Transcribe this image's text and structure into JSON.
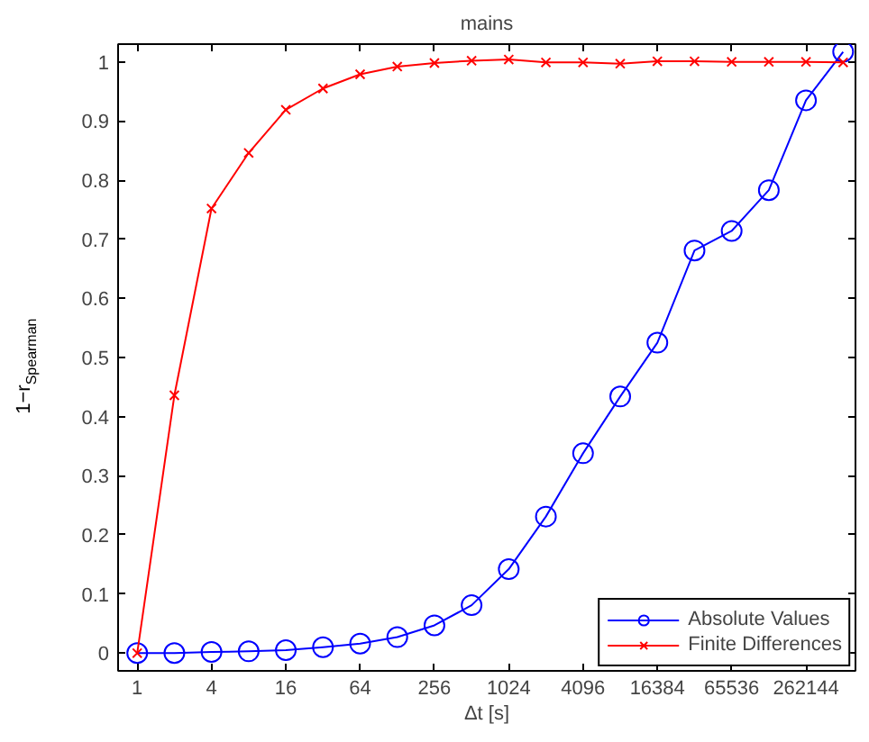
{
  "chart_data": {
    "type": "line",
    "title": "mains",
    "xlabel": "Δt [s]",
    "ylabel": "1−r$_{Spearman}$",
    "log": "x",
    "x": [
      1,
      2,
      4,
      8,
      16,
      32,
      64,
      128,
      256,
      512,
      1024,
      2048,
      4096,
      8192,
      16384,
      32768,
      65536,
      131072,
      262144,
      524288
    ],
    "series": [
      {
        "name": "Absolute Values",
        "color": "#0000ff",
        "marker": "circle",
        "values": [
          0,
          0,
          0.002,
          0.003,
          0.005,
          0.01,
          0.016,
          0.027,
          0.047,
          0.081,
          0.142,
          0.231,
          0.338,
          0.434,
          0.525,
          0.681,
          0.714,
          0.783,
          0.935,
          1.017
        ]
      },
      {
        "name": "Finite Differences",
        "color": "#ff0000",
        "marker": "cross",
        "values": [
          0,
          0.436,
          0.752,
          0.846,
          0.919,
          0.955,
          0.979,
          0.992,
          0.998,
          1.002,
          1.004,
          0.999,
          0.999,
          0.997,
          1.001,
          1.001,
          1.0,
          1.0,
          1.0,
          0.999
        ]
      }
    ],
    "xlim": [
      0.7,
      660000
    ],
    "ylim": [
      -0.03,
      1.03
    ],
    "xticks": [
      1,
      4,
      16,
      64,
      256,
      1024,
      4096,
      16384,
      65536,
      262144
    ],
    "yticks": [
      0,
      0.1,
      0.2,
      0.3,
      0.4,
      0.5,
      0.6,
      0.7,
      0.8,
      0.9,
      1
    ],
    "grid": false,
    "legend": "bottom right"
  }
}
